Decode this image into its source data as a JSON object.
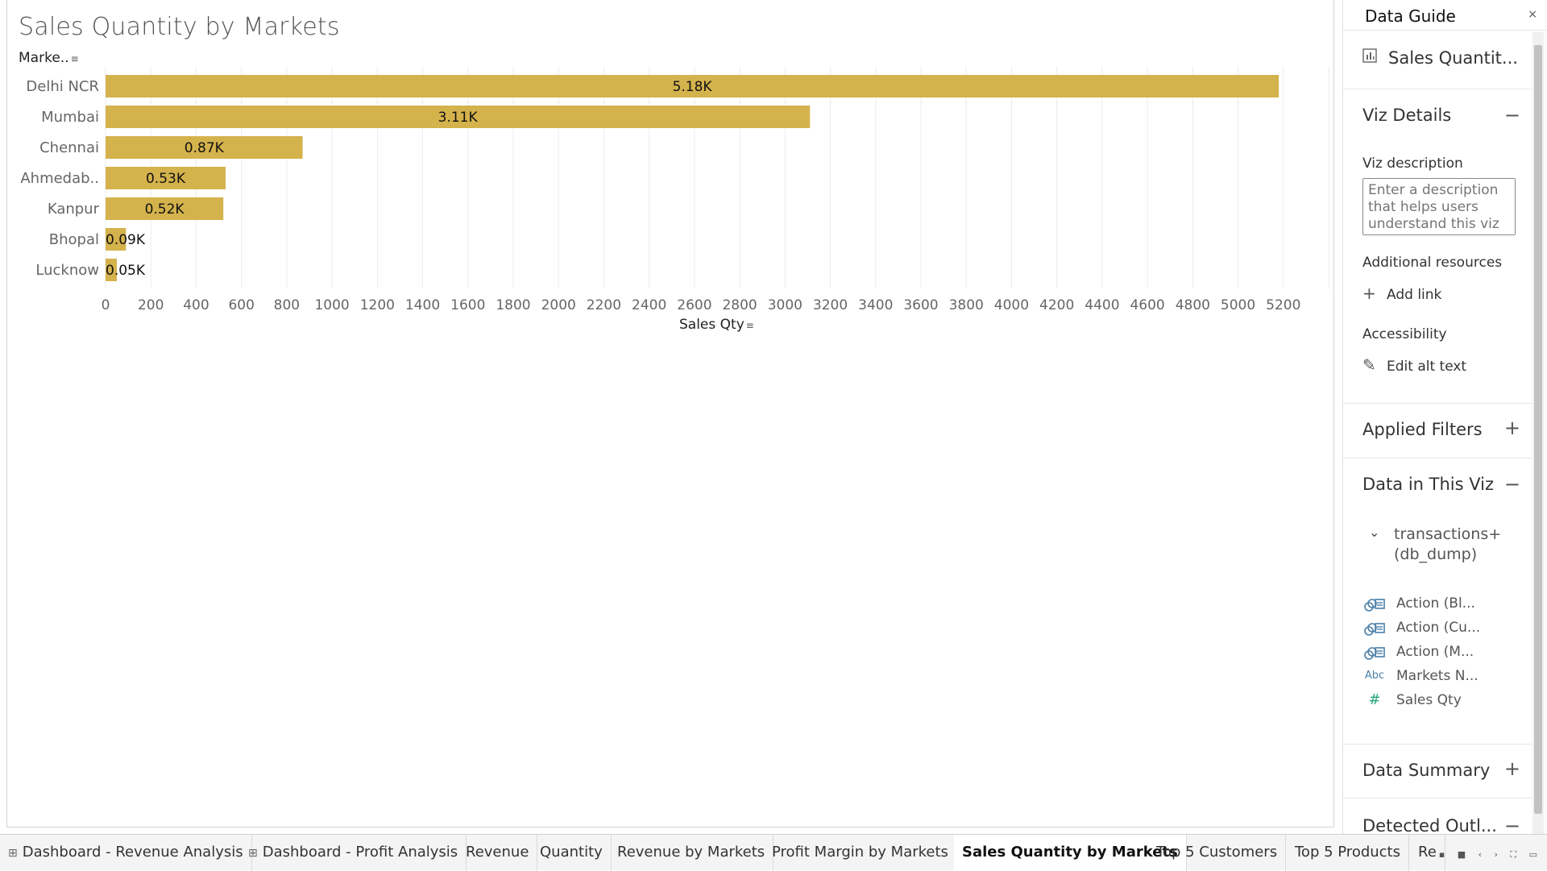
{
  "viz": {
    "title": "Sales Quantity by Markets",
    "row_header": "Marke..",
    "x_title": "Sales Qty",
    "sort_icon": "sort-descending-icon"
  },
  "chart_data": {
    "type": "bar",
    "orientation": "horizontal",
    "categories": [
      "Delhi NCR",
      "Mumbai",
      "Chennai",
      "Ahmedab..",
      "Kanpur",
      "Bhopal",
      "Lucknow"
    ],
    "values": [
      5180,
      3110,
      870,
      530,
      520,
      90,
      50
    ],
    "data_labels": [
      "5.18K",
      "3.11K",
      "0.87K",
      "0.53K",
      "0.52K",
      "0.09K",
      "0.05K"
    ],
    "xlabel": "Sales Qty",
    "ylabel": "Marke..",
    "xticks": [
      0,
      200,
      400,
      600,
      800,
      1000,
      1200,
      1400,
      1600,
      1800,
      2000,
      2200,
      2400,
      2600,
      2800,
      3000,
      3200,
      3400,
      3600,
      3800,
      4000,
      4200,
      4400,
      4600,
      4800,
      5000,
      5200
    ],
    "xlim": [
      0,
      5400
    ],
    "grid": true,
    "bar_color": "#d4b24c"
  },
  "guide": {
    "title": "Data Guide",
    "close": "×",
    "sheet_name": "Sales Quantit...",
    "viz_details": "Viz Details",
    "viz_description_label": "Viz description",
    "viz_description_placeholder": "Enter a description that helps users understand this viz",
    "additional_resources": "Additional resources",
    "add_link": "Add link",
    "accessibility": "Accessibility",
    "edit_alt_text": "Edit alt text",
    "applied_filters": "Applied Filters",
    "data_in_viz": "Data in This Viz",
    "datasource": "transactions+ (db_dump)",
    "fields": [
      {
        "name": "Action (Bl...",
        "icon": "action-set-icon"
      },
      {
        "name": "Action (Cu...",
        "icon": "action-set-icon"
      },
      {
        "name": "Action (M...",
        "icon": "action-set-icon"
      },
      {
        "name": "Markets N...",
        "icon": "Abc"
      },
      {
        "name": "Sales Qty",
        "icon": "#"
      }
    ],
    "data_summary": "Data Summary",
    "detected_outliers": "Detected Outl...",
    "minus": "−",
    "plus": "+"
  },
  "tabs": [
    {
      "label": "Dashboard - Revenue Analysis",
      "dashboard": true
    },
    {
      "label": "Dashboard - Profit Analysis",
      "dashboard": true
    },
    {
      "label": "Revenue"
    },
    {
      "label": "Quantity"
    },
    {
      "label": "Revenue by Markets"
    },
    {
      "label": "Profit Margin by Markets"
    },
    {
      "label": "Sales Quantity by Markets",
      "active": true
    },
    {
      "label": "Top 5 Customers"
    },
    {
      "label": "Top 5 Products"
    },
    {
      "label": "Re"
    }
  ],
  "colors": {
    "accent": "#d4b24c",
    "field_blue": "#4a7fa8",
    "measure_green": "#2aa67a"
  }
}
